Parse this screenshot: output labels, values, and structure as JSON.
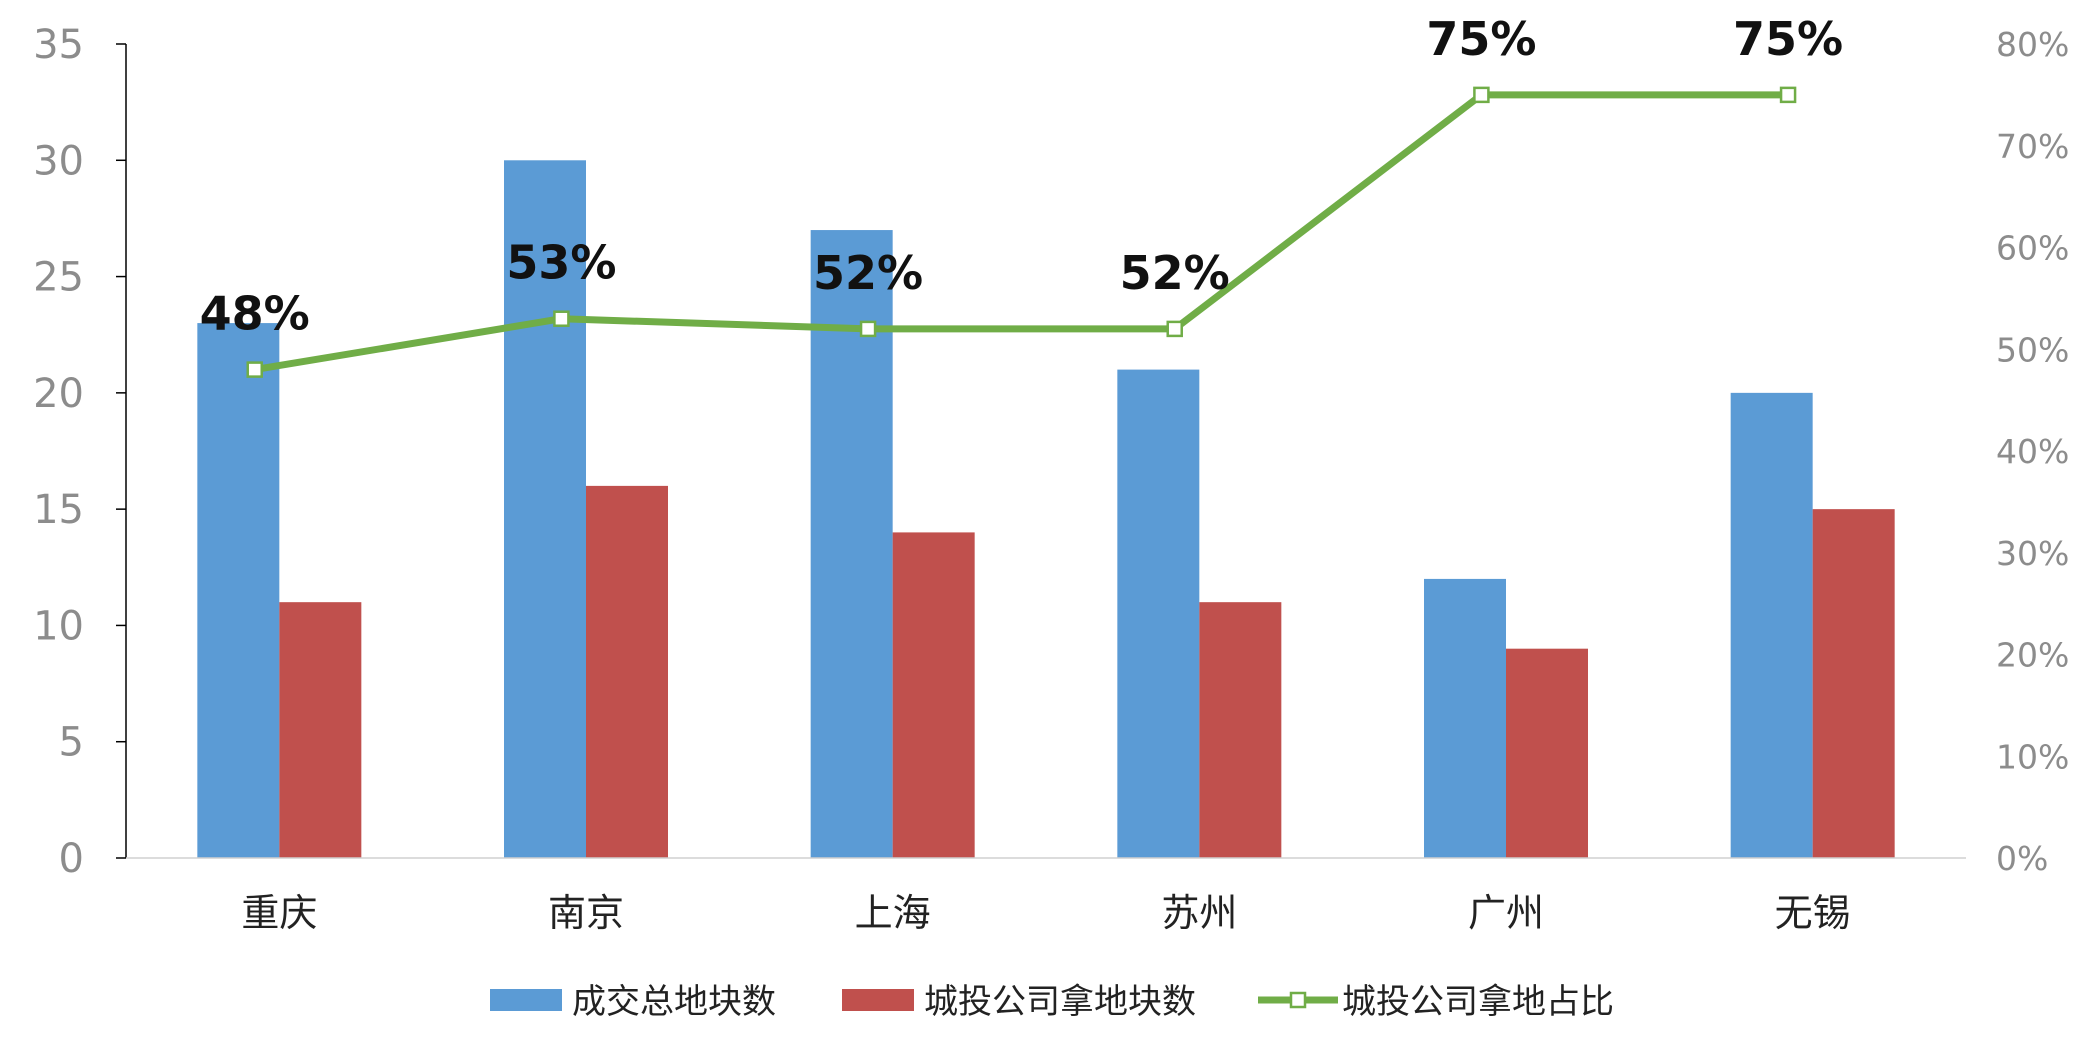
{
  "chart_data": {
    "type": "bar",
    "categories": [
      "重庆",
      "南京",
      "上海",
      "苏州",
      "广州",
      "无锡"
    ],
    "series": [
      {
        "name": "成交总地块数",
        "type": "bar",
        "axis": "left",
        "color": "#5b9bd5",
        "values": [
          23,
          30,
          27,
          21,
          12,
          20
        ]
      },
      {
        "name": "城投公司拿地块数",
        "type": "bar",
        "axis": "left",
        "color": "#c0504d",
        "values": [
          11,
          16,
          14,
          11,
          9,
          15
        ]
      },
      {
        "name": "城投公司拿地占比",
        "type": "line",
        "axis": "right",
        "color": "#70ad47",
        "values": [
          0.48,
          0.53,
          0.52,
          0.52,
          0.75,
          0.75
        ],
        "labels": [
          "48%",
          "53%",
          "52%",
          "52%",
          "75%",
          "75%"
        ]
      }
    ],
    "y_left": {
      "min": 0,
      "max": 35,
      "ticks": [
        "0",
        "5",
        "10",
        "15",
        "20",
        "25",
        "30",
        "35"
      ]
    },
    "y_right": {
      "min": 0,
      "max": 0.8,
      "ticks": [
        "0%",
        "10%",
        "20%",
        "30%",
        "40%",
        "50%",
        "60%",
        "70%",
        "80%"
      ]
    },
    "legend_position": "bottom",
    "grid": false
  }
}
